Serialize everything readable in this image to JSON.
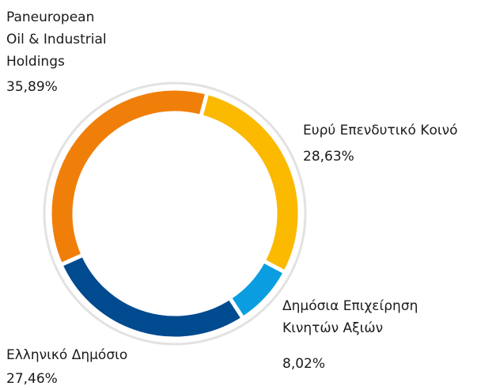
{
  "chart_data": {
    "type": "donut",
    "categories": [
      "Paneuropean\nOil & Industrial\nHoldings",
      "Ευρύ Επενδυτικό Κοινό",
      "Δημόσια Επιχείρηση\nΚινητών Αξιών",
      "Ελληνικό Δημόσιο"
    ],
    "values": [
      35.89,
      28.63,
      8.02,
      27.46
    ],
    "value_labels": [
      "35,89%",
      "28,63%",
      "8,02%",
      "27,46%"
    ],
    "colors": [
      "#f07f0a",
      "#fbb900",
      "#0a9ee0",
      "#004a8f"
    ]
  }
}
